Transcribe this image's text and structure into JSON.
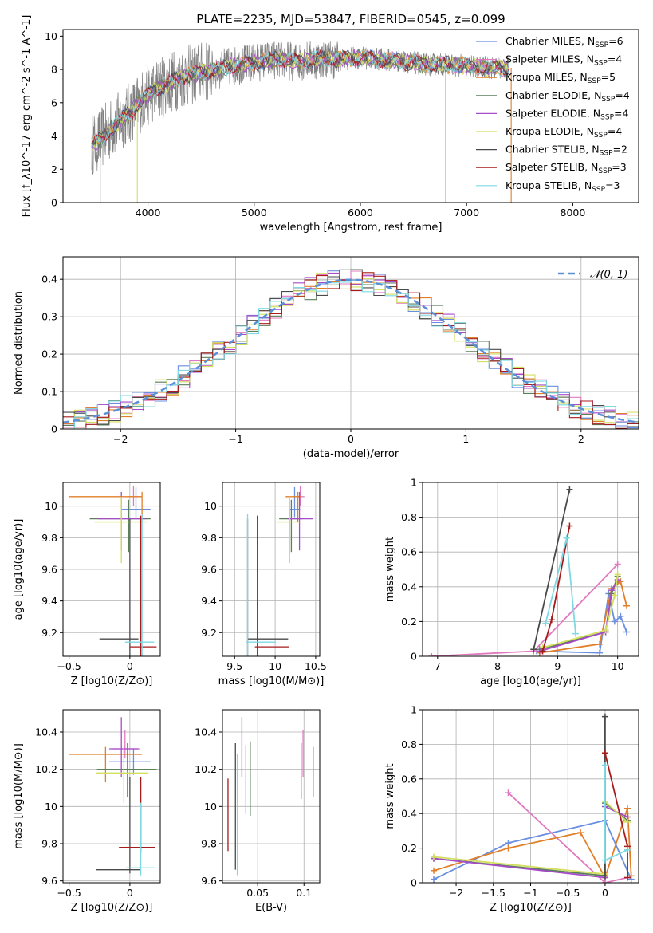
{
  "figure": {
    "title": "PLATE=2235, MJD=53847, FIBERID=0545, z=0.099"
  },
  "series_colors": {
    "Chabrier MILES": "#6a8ee0",
    "Salpeter MILES": "#e079c0",
    "Kroupa MILES": "#e07f27",
    "Chabrier ELODIE": "#5b7f5b",
    "Salpeter ELODIE": "#a64cc9",
    "Kroupa ELODIE": "#d3df5e",
    "Chabrier STELIB": "#4a4a4a",
    "Salpeter STELIB": "#a61c1c",
    "Kroupa STELIB": "#7fd9e3"
  },
  "chart_data": [
    {
      "id": "spectrum",
      "type": "line",
      "xlabel": "wavelength [Angstrom, rest frame]",
      "ylabel": "Flux [f_λ10^-17 erg cm^-2 s^-1 A^-1]",
      "xlim": [
        3200,
        8620
      ],
      "ylim": [
        0,
        10.4
      ],
      "xticks": [
        4000,
        5000,
        6000,
        7000,
        8000
      ],
      "yticks": [
        0,
        2,
        4,
        6,
        8,
        10
      ],
      "grid": false,
      "legend_position": "right",
      "data_color": "#808080",
      "model_color": "#7fd9e3",
      "data_trend": {
        "wavelength": [
          3470,
          3550,
          3650,
          3750,
          3850,
          3950,
          4050,
          4200,
          4350,
          4500,
          4650,
          4800,
          5000,
          5200,
          5400,
          5600,
          5800,
          6000,
          6200,
          6400,
          6600,
          6800,
          7000,
          7200,
          7400
        ],
        "flux": [
          3.5,
          3.8,
          4.4,
          5.0,
          5.5,
          6.2,
          6.7,
          7.2,
          7.6,
          7.8,
          8.0,
          8.2,
          8.4,
          8.6,
          8.5,
          8.6,
          8.6,
          8.7,
          8.6,
          8.5,
          8.3,
          8.3,
          8.2,
          8.1,
          8.1
        ]
      },
      "legend": [
        {
          "label": "Chabrier MILES",
          "nssp": "6"
        },
        {
          "label": "Salpeter MILES",
          "nssp": "4"
        },
        {
          "label": "Kroupa MILES",
          "nssp": "5"
        },
        {
          "label": "Chabrier ELODIE",
          "nssp": "4"
        },
        {
          "label": "Salpeter ELODIE",
          "nssp": "4"
        },
        {
          "label": "Kroupa ELODIE",
          "nssp": "4"
        },
        {
          "label": "Chabrier STELIB",
          "nssp": "2"
        },
        {
          "label": "Salpeter STELIB",
          "nssp": "3"
        },
        {
          "label": "Kroupa STELIB",
          "nssp": "3"
        }
      ]
    },
    {
      "id": "residuals",
      "type": "histogram",
      "xlabel": "(data-model)/error",
      "ylabel": "Normed distribution",
      "xlim": [
        -2.5,
        2.5
      ],
      "ylim": [
        0,
        0.46
      ],
      "xticks": [
        -2,
        -1,
        0,
        1,
        2
      ],
      "yticks": [
        0.0,
        0.1,
        0.2,
        0.3,
        0.4
      ],
      "grid": true,
      "legend": [
        {
          "label": "𝒩(0, 1)",
          "color": "#5b8fd6",
          "dash": true
        }
      ],
      "bin_width": 0.1
    },
    {
      "id": "age_vs_Z",
      "type": "errorbar",
      "xlabel": "Z [log10(Z/Z⊙)]",
      "ylabel": "age  [log10(age/yr)]",
      "xlim": [
        -0.55,
        0.25
      ],
      "ylim": [
        9.05,
        10.15
      ],
      "xticks": [
        -0.5,
        0.0
      ],
      "yticks": [
        9.2,
        9.4,
        9.6,
        9.8,
        10.0
      ],
      "grid": true,
      "points": [
        {
          "series": "Chabrier MILES",
          "x": 0.05,
          "y": 9.98,
          "xerr": [
            0.12,
            0.12
          ],
          "yerr": [
            0.05,
            0.14
          ]
        },
        {
          "series": "Salpeter MILES",
          "x": 0.03,
          "y": 10.06,
          "xerr": [
            0.05,
            0.05
          ],
          "yerr": [
            0.06,
            0.07
          ]
        },
        {
          "series": "Kroupa MILES",
          "x": 0.1,
          "y": 10.06,
          "xerr": [
            0.6,
            0.0
          ],
          "yerr": [
            0.16,
            0.03
          ]
        },
        {
          "series": "Chabrier ELODIE",
          "x": -0.01,
          "y": 9.92,
          "xerr": [
            0.32,
            0.18
          ],
          "yerr": [
            0.21,
            0.12
          ]
        },
        {
          "series": "Salpeter ELODIE",
          "x": -0.07,
          "y": 9.92,
          "xerr": [
            0.19,
            0.2
          ],
          "yerr": [
            0.2,
            0.17
          ]
        },
        {
          "series": "Kroupa ELODIE",
          "x": -0.07,
          "y": 9.9,
          "xerr": [
            0.22,
            0.21
          ],
          "yerr": [
            0.26,
            0.16
          ]
        },
        {
          "series": "Chabrier STELIB",
          "x": 0.0,
          "y": 9.16,
          "xerr": [
            0.25,
            0.07
          ],
          "yerr": [
            0.25,
            0.76
          ]
        },
        {
          "series": "Salpeter STELIB",
          "x": 0.09,
          "y": 9.11,
          "xerr": [
            0.09,
            0.13
          ],
          "yerr": [
            0.26,
            0.83
          ]
        },
        {
          "series": "Kroupa STELIB",
          "x": 0.1,
          "y": 9.14,
          "xerr": [
            0.14,
            0.1
          ],
          "yerr": [
            0.28,
            0.81
          ]
        }
      ]
    },
    {
      "id": "age_vs_mass",
      "type": "errorbar",
      "xlabel": "mass [log10(M/M⊙)]",
      "ylabel": "",
      "xlim": [
        9.35,
        10.55
      ],
      "ylim": [
        9.05,
        10.15
      ],
      "xticks": [
        9.5,
        10.0,
        10.5
      ],
      "yticks": [
        9.2,
        9.4,
        9.6,
        9.8,
        10.0
      ],
      "grid": true,
      "points": [
        {
          "series": "Chabrier MILES",
          "x": 10.24,
          "y": 9.98,
          "xerr": [
            0.07,
            0.07
          ],
          "yerr": [
            0.05,
            0.14
          ]
        },
        {
          "series": "Salpeter MILES",
          "x": 10.31,
          "y": 10.06,
          "xerr": [
            0.05,
            0.05
          ],
          "yerr": [
            0.06,
            0.07
          ]
        },
        {
          "series": "Kroupa MILES",
          "x": 10.28,
          "y": 10.06,
          "xerr": [
            0.15,
            0.04
          ],
          "yerr": [
            0.16,
            0.03
          ]
        },
        {
          "series": "Chabrier ELODIE",
          "x": 10.2,
          "y": 9.92,
          "xerr": [
            0.15,
            0.14
          ],
          "yerr": [
            0.21,
            0.12
          ]
        },
        {
          "series": "Salpeter ELODIE",
          "x": 10.3,
          "y": 9.92,
          "xerr": [
            0.15,
            0.17
          ],
          "yerr": [
            0.2,
            0.17
          ]
        },
        {
          "series": "Kroupa ELODIE",
          "x": 10.18,
          "y": 9.9,
          "xerr": [
            0.16,
            0.14
          ],
          "yerr": [
            0.26,
            0.16
          ]
        },
        {
          "series": "Chabrier STELIB",
          "x": 9.66,
          "y": 9.16,
          "xerr": [
            0.0,
            0.5
          ],
          "yerr": [
            0.25,
            0.76
          ]
        },
        {
          "series": "Salpeter STELIB",
          "x": 9.78,
          "y": 9.11,
          "xerr": [
            0.03,
            0.39
          ],
          "yerr": [
            0.26,
            0.83
          ]
        },
        {
          "series": "Kroupa STELIB",
          "x": 9.66,
          "y": 9.14,
          "xerr": [
            0.02,
            0.35
          ],
          "yerr": [
            0.28,
            0.81
          ]
        }
      ]
    },
    {
      "id": "weight_vs_age",
      "type": "line",
      "xlabel": "age  [log10(age/yr)]",
      "ylabel": "mass weight",
      "xlim": [
        6.75,
        10.35
      ],
      "ylim": [
        0,
        1.0
      ],
      "xticks": [
        7,
        8,
        9,
        10
      ],
      "yticks": [
        0.0,
        0.2,
        0.4,
        0.6,
        0.8,
        1.0
      ],
      "grid": true,
      "series": [
        {
          "name": "Chabrier MILES",
          "x": [
            8.65,
            9.7,
            9.85,
            9.95,
            10.05,
            10.15
          ],
          "y": [
            0.03,
            0.02,
            0.36,
            0.2,
            0.23,
            0.14
          ]
        },
        {
          "name": "Salpeter MILES",
          "x": [
            6.9,
            8.6,
            10.0
          ],
          "y": [
            0.0,
            0.03,
            0.53
          ]
        },
        {
          "name": "Kroupa MILES",
          "x": [
            8.7,
            9.7,
            9.9,
            10.05,
            10.15
          ],
          "y": [
            0.02,
            0.07,
            0.39,
            0.43,
            0.29
          ]
        },
        {
          "name": "Chabrier ELODIE",
          "x": [
            8.7,
            9.8,
            9.9,
            10.0
          ],
          "y": [
            0.04,
            0.14,
            0.36,
            0.46
          ]
        },
        {
          "name": "Salpeter ELODIE",
          "x": [
            8.7,
            9.8,
            9.9,
            10.0
          ],
          "y": [
            0.03,
            0.14,
            0.38,
            0.44
          ]
        },
        {
          "name": "Kroupa ELODIE",
          "x": [
            8.75,
            9.8,
            9.95,
            10.0
          ],
          "y": [
            0.05,
            0.15,
            0.35,
            0.47
          ]
        },
        {
          "name": "Chabrier STELIB",
          "x": [
            8.6,
            9.2
          ],
          "y": [
            0.04,
            0.96
          ]
        },
        {
          "name": "Salpeter STELIB",
          "x": [
            8.75,
            8.9,
            9.2
          ],
          "y": [
            0.03,
            0.21,
            0.75
          ]
        },
        {
          "name": "Kroupa STELIB",
          "x": [
            8.8,
            9.15,
            9.3
          ],
          "y": [
            0.19,
            0.68,
            0.13
          ]
        }
      ]
    },
    {
      "id": "mass_vs_Z",
      "type": "errorbar",
      "xlabel": "Z [log10(Z/Z⊙)]",
      "ylabel": "mass [log10(M/M⊙)]",
      "xlim": [
        -0.55,
        0.25
      ],
      "ylim": [
        9.59,
        10.52
      ],
      "xticks": [
        -0.5,
        0.0
      ],
      "yticks": [
        9.6,
        9.8,
        10.0,
        10.2,
        10.4
      ],
      "grid": true,
      "points": [
        {
          "series": "Chabrier MILES",
          "x": 0.03,
          "y": 10.24,
          "xerr": [
            0.2,
            0.14
          ],
          "yerr": [
            0.07,
            0.07
          ]
        },
        {
          "series": "Salpeter MILES",
          "x": -0.04,
          "y": 10.31,
          "xerr": [
            0.1,
            0.12
          ],
          "yerr": [
            0.05,
            0.1
          ]
        },
        {
          "series": "Kroupa MILES",
          "x": -0.2,
          "y": 10.28,
          "xerr": [
            0.3,
            0.3
          ],
          "yerr": [
            0.15,
            0.04
          ]
        },
        {
          "series": "Chabrier ELODIE",
          "x": -0.02,
          "y": 10.2,
          "xerr": [
            0.25,
            0.24
          ],
          "yerr": [
            0.15,
            0.14
          ]
        },
        {
          "series": "Salpeter ELODIE",
          "x": -0.07,
          "y": 10.31,
          "xerr": [
            0.1,
            0.14
          ],
          "yerr": [
            0.15,
            0.17
          ]
        },
        {
          "series": "Kroupa ELODIE",
          "x": -0.05,
          "y": 10.18,
          "xerr": [
            0.23,
            0.2
          ],
          "yerr": [
            0.16,
            0.14
          ]
        },
        {
          "series": "Chabrier STELIB",
          "x": 0.0,
          "y": 9.66,
          "xerr": [
            0.28,
            0.09
          ],
          "yerr": [
            0.02,
            0.5
          ]
        },
        {
          "series": "Salpeter STELIB",
          "x": 0.09,
          "y": 9.78,
          "xerr": [
            0.18,
            0.12
          ],
          "yerr": [
            0.03,
            0.38
          ]
        },
        {
          "series": "Kroupa STELIB",
          "x": 0.09,
          "y": 9.67,
          "xerr": [
            0.12,
            0.12
          ],
          "yerr": [
            0.04,
            0.35
          ]
        }
      ]
    },
    {
      "id": "mass_vs_EBV",
      "type": "errorbar",
      "xlabel": "E(B-V)",
      "ylabel": "",
      "xlim": [
        0.012,
        0.117
      ],
      "ylim": [
        9.59,
        10.52
      ],
      "xticks": [
        0.05,
        0.1
      ],
      "yticks": [
        9.6,
        9.8,
        10.0,
        10.2,
        10.4
      ],
      "grid": true,
      "points": [
        {
          "series": "Chabrier MILES",
          "x": 0.097,
          "y": 10.19,
          "xerr": [
            0,
            0
          ],
          "yerr": [
            0.15,
            0.15
          ]
        },
        {
          "series": "Salpeter MILES",
          "x": 0.099,
          "y": 10.26,
          "xerr": [
            0,
            0
          ],
          "yerr": [
            0.1,
            0.15
          ]
        },
        {
          "series": "Kroupa MILES",
          "x": 0.11,
          "y": 10.18,
          "xerr": [
            0,
            0
          ],
          "yerr": [
            0.13,
            0.14
          ]
        },
        {
          "series": "Chabrier ELODIE",
          "x": 0.042,
          "y": 10.15,
          "xerr": [
            0,
            0
          ],
          "yerr": [
            0.2,
            0.2
          ]
        },
        {
          "series": "Salpeter ELODIE",
          "x": 0.033,
          "y": 10.31,
          "xerr": [
            0,
            0
          ],
          "yerr": [
            0.15,
            0.17
          ]
        },
        {
          "series": "Kroupa ELODIE",
          "x": 0.037,
          "y": 10.15,
          "xerr": [
            0,
            0
          ],
          "yerr": [
            0.19,
            0.18
          ]
        },
        {
          "series": "Chabrier STELIB",
          "x": 0.026,
          "y": 9.98,
          "xerr": [
            0,
            0
          ],
          "yerr": [
            0.32,
            0.36
          ]
        },
        {
          "series": "Salpeter STELIB",
          "x": 0.018,
          "y": 9.98,
          "xerr": [
            0,
            0
          ],
          "yerr": [
            0.22,
            0.17
          ]
        },
        {
          "series": "Kroupa STELIB",
          "x": 0.028,
          "y": 9.95,
          "xerr": [
            0,
            0
          ],
          "yerr": [
            0.32,
            0.33
          ]
        }
      ]
    },
    {
      "id": "weight_vs_Z",
      "type": "line",
      "xlabel": "Z [log10(Z/Z⊙)]",
      "ylabel": "mass weight",
      "xlim": [
        -2.45,
        0.45
      ],
      "ylim": [
        0,
        1.0
      ],
      "xticks": [
        -2.0,
        -1.5,
        -1.0,
        -0.5,
        0.0
      ],
      "yticks": [
        0.0,
        0.2,
        0.4,
        0.6,
        0.8,
        1.0
      ],
      "grid": true,
      "series": [
        {
          "name": "Chabrier MILES",
          "x": [
            -2.3,
            -1.3,
            0.0,
            0.35
          ],
          "y": [
            0.02,
            0.23,
            0.36,
            0.02
          ]
        },
        {
          "name": "Salpeter MILES",
          "x": [
            -1.3,
            0.0,
            0.3
          ],
          "y": [
            0.52,
            0.0,
            0.03
          ]
        },
        {
          "name": "Kroupa MILES",
          "x": [
            -2.3,
            -1.3,
            -0.33,
            0.0,
            0.3,
            0.35
          ],
          "y": [
            0.07,
            0.2,
            0.29,
            0.03,
            0.43,
            0.04
          ]
        },
        {
          "name": "Chabrier ELODIE",
          "x": [
            -2.3,
            0.0,
            0.0,
            0.3
          ],
          "y": [
            0.14,
            0.04,
            0.46,
            0.36
          ]
        },
        {
          "name": "Salpeter ELODIE",
          "x": [
            -2.3,
            0.0,
            0.0,
            0.3
          ],
          "y": [
            0.14,
            0.03,
            0.44,
            0.38
          ]
        },
        {
          "name": "Kroupa ELODIE",
          "x": [
            -2.3,
            0.0,
            0.0,
            0.3
          ],
          "y": [
            0.15,
            0.05,
            0.47,
            0.35
          ]
        },
        {
          "name": "Chabrier STELIB",
          "x": [
            0.0,
            0.0
          ],
          "y": [
            0.04,
            0.96
          ]
        },
        {
          "name": "Salpeter STELIB",
          "x": [
            0.0,
            0.3,
            0.3
          ],
          "y": [
            0.75,
            0.21,
            0.03
          ]
        },
        {
          "name": "Kroupa STELIB",
          "x": [
            0.0,
            0.0,
            0.3
          ],
          "y": [
            0.68,
            0.13,
            0.19
          ]
        }
      ]
    }
  ]
}
